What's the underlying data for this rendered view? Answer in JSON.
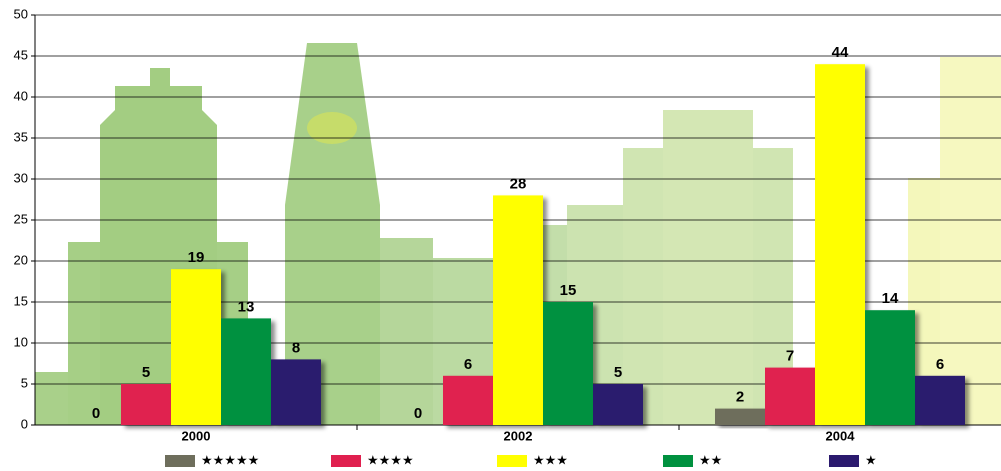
{
  "chart_data": {
    "type": "bar",
    "categories": [
      "2000",
      "2002",
      "2004"
    ],
    "series": [
      {
        "name": "★★★★★",
        "color": "#6e6e5c",
        "values": [
          0,
          0,
          2
        ]
      },
      {
        "name": "★★★★",
        "color": "#e0204f",
        "values": [
          5,
          6,
          7
        ]
      },
      {
        "name": "★★★",
        "color": "#ffff00",
        "values": [
          19,
          28,
          44
        ]
      },
      {
        "name": "★★",
        "color": "#00913f",
        "values": [
          13,
          15,
          14
        ]
      },
      {
        "name": "★",
        "color": "#2b1a6e",
        "values": [
          8,
          5,
          6
        ]
      }
    ],
    "ylim": [
      0,
      50
    ],
    "yticks": [
      0,
      5,
      10,
      15,
      20,
      25,
      30,
      35,
      40,
      45,
      50
    ],
    "grid": true,
    "legend": "bottom"
  }
}
